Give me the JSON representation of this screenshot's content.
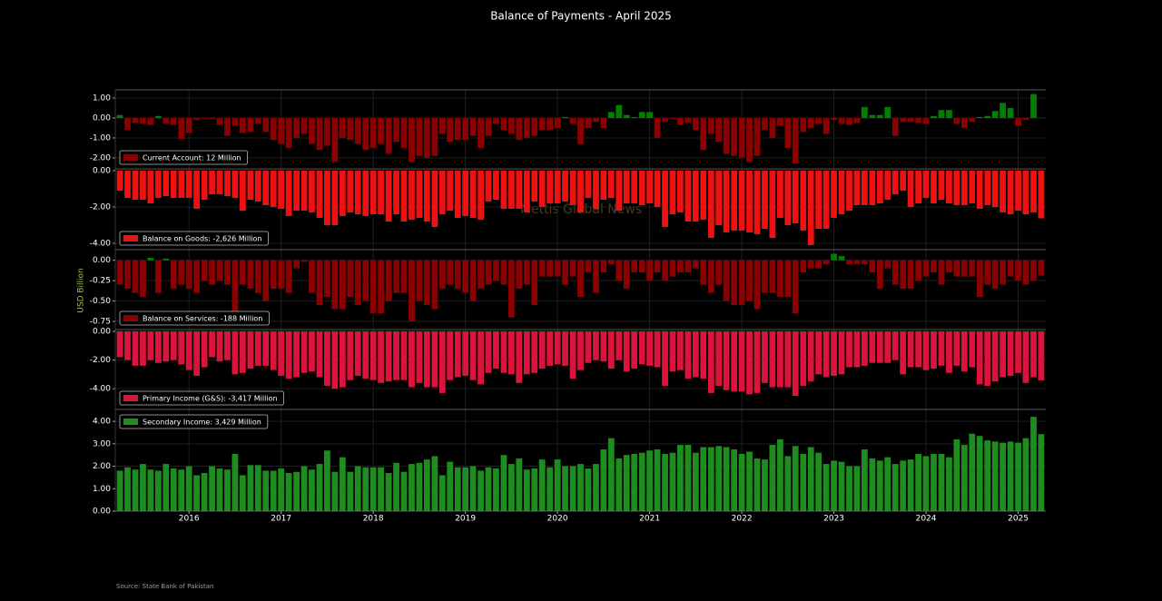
{
  "chart_data": {
    "type": "bar",
    "title": "Balance of Payments - April 2025",
    "y_label": "USD Billion",
    "watermark": "Mettis Global News",
    "source": "Source: State Bank of Pakistan",
    "grid": true,
    "xlim": [
      2015.2,
      2025.3
    ],
    "xticks": [
      2016,
      2017,
      2018,
      2019,
      2020,
      2021,
      2022,
      2023,
      2024,
      2025
    ],
    "x": [
      2015.25,
      2015.333,
      2015.417,
      2015.5,
      2015.583,
      2015.667,
      2015.75,
      2015.833,
      2015.917,
      2016,
      2016.083,
      2016.167,
      2016.25,
      2016.333,
      2016.417,
      2016.5,
      2016.583,
      2016.667,
      2016.75,
      2016.833,
      2016.917,
      2017,
      2017.083,
      2017.167,
      2017.25,
      2017.333,
      2017.417,
      2017.5,
      2017.583,
      2017.667,
      2017.75,
      2017.833,
      2017.917,
      2018,
      2018.083,
      2018.167,
      2018.25,
      2018.333,
      2018.417,
      2018.5,
      2018.583,
      2018.667,
      2018.75,
      2018.833,
      2018.917,
      2019,
      2019.083,
      2019.167,
      2019.25,
      2019.333,
      2019.417,
      2019.5,
      2019.583,
      2019.667,
      2019.75,
      2019.833,
      2019.917,
      2020,
      2020.083,
      2020.167,
      2020.25,
      2020.333,
      2020.417,
      2020.5,
      2020.583,
      2020.667,
      2020.75,
      2020.833,
      2020.917,
      2021,
      2021.083,
      2021.167,
      2021.25,
      2021.333,
      2021.417,
      2021.5,
      2021.583,
      2021.667,
      2021.75,
      2021.833,
      2021.917,
      2022,
      2022.083,
      2022.167,
      2022.25,
      2022.333,
      2022.417,
      2022.5,
      2022.583,
      2022.667,
      2022.75,
      2022.833,
      2022.917,
      2023,
      2023.083,
      2023.167,
      2023.25,
      2023.333,
      2023.417,
      2023.5,
      2023.583,
      2023.667,
      2023.75,
      2023.833,
      2023.917,
      2024,
      2024.083,
      2024.167,
      2024.25,
      2024.333,
      2024.417,
      2024.5,
      2024.583,
      2024.667,
      2024.75,
      2024.833,
      2024.917,
      2025,
      2025.083,
      2025.167,
      2025.25
    ],
    "series": [
      {
        "name": "Current Account: 12 Million",
        "color": "#8b0000",
        "positive_color": "#008000",
        "legend": "lower left",
        "ylim": [
          -2.55,
          1.41
        ],
        "yticks": [
          {
            "value": -2,
            "label": "-2.00"
          },
          {
            "value": -1,
            "label": "-1.00"
          },
          {
            "value": 0,
            "label": "0.00"
          },
          {
            "value": 1,
            "label": "1.00"
          }
        ],
        "values": [
          0.15,
          -0.6,
          -0.25,
          -0.3,
          -0.35,
          0.1,
          -0.3,
          -0.35,
          -1.05,
          -0.75,
          -0.1,
          -0.05,
          -0.05,
          -0.35,
          -0.9,
          -0.4,
          -0.75,
          -0.7,
          -0.3,
          -0.7,
          -1.1,
          -1.3,
          -1.5,
          -1.0,
          -0.8,
          -1.3,
          -1.6,
          -1.4,
          -2.2,
          -1.0,
          -1.1,
          -1.3,
          -1.6,
          -1.5,
          -1.3,
          -1.8,
          -1.2,
          -1.5,
          -2.2,
          -1.9,
          -2.0,
          -1.9,
          -0.8,
          -1.2,
          -1.1,
          -1.1,
          -0.9,
          -1.5,
          -0.9,
          -0.3,
          -0.6,
          -0.8,
          -1.1,
          -1.0,
          -0.9,
          -0.6,
          -0.6,
          -0.5,
          0.05,
          -0.3,
          -1.3,
          -0.5,
          -0.2,
          -0.5,
          0.3,
          0.65,
          0.15,
          0.05,
          0.3,
          0.3,
          -1.0,
          -0.2,
          -0.05,
          -0.35,
          -0.25,
          -0.6,
          -1.6,
          -0.8,
          -1.2,
          -1.8,
          -1.9,
          -2.0,
          -2.2,
          -1.9,
          -0.6,
          -1.0,
          -0.4,
          -1.5,
          -2.3,
          -0.7,
          -0.5,
          -0.3,
          -0.8,
          -0.1,
          -0.3,
          -0.35,
          -0.25,
          0.55,
          0.15,
          0.15,
          0.55,
          -0.9,
          -0.2,
          -0.2,
          -0.25,
          -0.3,
          0.1,
          0.4,
          0.4,
          -0.3,
          -0.5,
          -0.2,
          0.05,
          0.1,
          0.35,
          0.75,
          0.5,
          -0.4,
          -0.1,
          1.2,
          0.012
        ]
      },
      {
        "name": "Balance on Goods: -2,626 Million",
        "color": "#ee1111",
        "legend": "lower left",
        "ylim": [
          -4.35,
          0.1
        ],
        "yticks": [
          {
            "value": -4,
            "label": "-4.00"
          },
          {
            "value": -2,
            "label": "-2.00"
          },
          {
            "value": 0,
            "label": "0.00"
          }
        ],
        "values": [
          -1.1,
          -1.5,
          -1.6,
          -1.6,
          -1.8,
          -1.5,
          -1.4,
          -1.5,
          -1.5,
          -1.5,
          -2.1,
          -1.6,
          -1.3,
          -1.3,
          -1.4,
          -1.5,
          -2.2,
          -1.6,
          -1.7,
          -1.9,
          -2.0,
          -2.1,
          -2.5,
          -2.2,
          -2.2,
          -2.3,
          -2.6,
          -3.0,
          -3.0,
          -2.5,
          -2.3,
          -2.4,
          -2.5,
          -2.4,
          -2.4,
          -2.8,
          -2.4,
          -2.8,
          -2.7,
          -2.6,
          -2.8,
          -3.1,
          -2.4,
          -2.2,
          -2.6,
          -2.5,
          -2.6,
          -2.7,
          -1.7,
          -1.6,
          -2.1,
          -2.1,
          -2.1,
          -2.3,
          -1.7,
          -2.0,
          -1.8,
          -1.8,
          -1.7,
          -1.9,
          -2.3,
          -1.5,
          -2.1,
          -1.6,
          -1.5,
          -2.2,
          -1.8,
          -1.8,
          -1.9,
          -1.8,
          -2.0,
          -3.1,
          -2.4,
          -2.3,
          -2.8,
          -2.8,
          -2.7,
          -3.7,
          -3.0,
          -3.4,
          -3.3,
          -3.3,
          -3.4,
          -3.5,
          -3.2,
          -3.7,
          -2.6,
          -3.0,
          -2.9,
          -3.3,
          -4.1,
          -3.2,
          -3.2,
          -2.6,
          -2.4,
          -2.2,
          -1.9,
          -1.9,
          -1.9,
          -1.8,
          -1.6,
          -1.3,
          -1.1,
          -2.0,
          -1.8,
          -1.5,
          -1.8,
          -1.6,
          -1.8,
          -1.9,
          -1.9,
          -1.8,
          -2.1,
          -1.9,
          -2.0,
          -2.3,
          -2.4,
          -2.2,
          -2.4,
          -2.3,
          -2.626
        ]
      },
      {
        "name": "Balance on Services: -188 Million",
        "color": "#8b0000",
        "positive_color": "#008000",
        "legend": "lower left",
        "ylim": [
          -0.85,
          0.13
        ],
        "yticks": [
          -0.75,
          {
            "value": -0.5,
            "label": "-0.50"
          },
          -0.25,
          {
            "value": 0,
            "label": "0.00"
          }
        ],
        "values": [
          -0.3,
          -0.35,
          -0.4,
          -0.45,
          0.03,
          -0.4,
          0.02,
          -0.35,
          -0.3,
          -0.35,
          -0.4,
          -0.25,
          -0.3,
          -0.25,
          -0.3,
          -0.65,
          -0.3,
          -0.35,
          -0.4,
          -0.5,
          -0.35,
          -0.35,
          -0.4,
          -0.1,
          -0.02,
          -0.4,
          -0.55,
          -0.45,
          -0.6,
          -0.6,
          -0.45,
          -0.55,
          -0.5,
          -0.65,
          -0.65,
          -0.5,
          -0.4,
          -0.4,
          -0.75,
          -0.5,
          -0.55,
          -0.6,
          -0.35,
          -0.3,
          -0.35,
          -0.4,
          -0.5,
          -0.35,
          -0.3,
          -0.25,
          -0.3,
          -0.7,
          -0.35,
          -0.3,
          -0.55,
          -0.2,
          -0.2,
          -0.2,
          -0.3,
          -0.2,
          -0.45,
          -0.15,
          -0.4,
          -0.15,
          -0.05,
          -0.25,
          -0.35,
          -0.15,
          -0.15,
          -0.25,
          -0.15,
          -0.25,
          -0.2,
          -0.15,
          -0.15,
          -0.1,
          -0.3,
          -0.4,
          -0.3,
          -0.5,
          -0.55,
          -0.55,
          -0.5,
          -0.6,
          -0.4,
          -0.4,
          -0.45,
          -0.45,
          -0.65,
          -0.15,
          -0.1,
          -0.1,
          -0.05,
          0.08,
          0.05,
          -0.05,
          -0.05,
          -0.05,
          -0.15,
          -0.35,
          -0.1,
          -0.3,
          -0.35,
          -0.35,
          -0.25,
          -0.2,
          -0.15,
          -0.3,
          -0.15,
          -0.2,
          -0.2,
          -0.2,
          -0.45,
          -0.3,
          -0.35,
          -0.3,
          -0.2,
          -0.25,
          -0.3,
          -0.25,
          -0.188
        ]
      },
      {
        "name": "Primary Income (G&S): -3,417 Million",
        "color": "#dc143c",
        "legend": "lower left",
        "ylim": [
          -5.45,
          0.13
        ],
        "yticks": [
          {
            "value": -4,
            "label": "-4.00"
          },
          {
            "value": -2,
            "label": "-2.00"
          },
          {
            "value": 0,
            "label": "0.00"
          }
        ],
        "values": [
          -1.8,
          -2.0,
          -2.4,
          -2.4,
          -2.0,
          -2.2,
          -2.1,
          -2.0,
          -2.3,
          -2.7,
          -3.1,
          -2.5,
          -1.8,
          -2.1,
          -2.0,
          -3.0,
          -2.9,
          -2.6,
          -2.4,
          -2.4,
          -2.7,
          -3.1,
          -3.3,
          -3.2,
          -2.9,
          -2.8,
          -3.2,
          -3.8,
          -4.0,
          -3.9,
          -3.4,
          -3.1,
          -3.3,
          -3.4,
          -3.6,
          -3.5,
          -3.4,
          -3.4,
          -3.9,
          -3.6,
          -3.9,
          -3.9,
          -4.3,
          -3.4,
          -3.2,
          -3.1,
          -3.4,
          -3.7,
          -2.9,
          -2.6,
          -2.9,
          -3.0,
          -3.6,
          -3.0,
          -2.9,
          -2.6,
          -2.4,
          -2.3,
          -2.4,
          -3.3,
          -2.7,
          -2.2,
          -2.0,
          -2.1,
          -2.6,
          -2.0,
          -2.8,
          -2.6,
          -2.3,
          -2.4,
          -2.5,
          -3.8,
          -2.8,
          -2.7,
          -3.3,
          -3.2,
          -3.3,
          -4.3,
          -3.8,
          -4.1,
          -4.2,
          -4.2,
          -4.4,
          -4.3,
          -3.6,
          -3.9,
          -3.9,
          -3.9,
          -4.5,
          -3.8,
          -3.5,
          -3.0,
          -3.2,
          -3.1,
          -3.0,
          -2.5,
          -2.5,
          -2.4,
          -2.2,
          -2.2,
          -2.2,
          -2.0,
          -3.0,
          -2.5,
          -2.5,
          -2.7,
          -2.6,
          -2.4,
          -2.9,
          -2.4,
          -2.8,
          -2.5,
          -3.7,
          -3.8,
          -3.5,
          -3.2,
          -3.1,
          -2.9,
          -3.6,
          -3.2,
          -3.417
        ]
      },
      {
        "name": "Secondary Income: 3,429 Million",
        "color": "#1e8c1e",
        "legend": "upper left",
        "ylim": [
          0,
          4.53
        ],
        "yticks": [
          {
            "value": 0,
            "label": "0.00"
          },
          {
            "value": 1,
            "label": "1.00"
          },
          {
            "value": 2,
            "label": "2.00"
          },
          {
            "value": 3,
            "label": "3.00"
          },
          {
            "value": 4,
            "label": "4.00"
          }
        ],
        "values": [
          1.8,
          1.95,
          1.85,
          2.1,
          1.85,
          1.8,
          2.1,
          1.9,
          1.85,
          2.0,
          1.6,
          1.7,
          2.0,
          1.9,
          1.85,
          2.55,
          1.6,
          2.05,
          2.05,
          1.8,
          1.8,
          1.9,
          1.7,
          1.75,
          2.0,
          1.85,
          2.1,
          2.7,
          1.75,
          2.4,
          1.75,
          2.0,
          1.95,
          1.95,
          1.95,
          1.7,
          2.15,
          1.75,
          2.1,
          2.15,
          2.3,
          2.45,
          1.6,
          2.2,
          1.95,
          1.95,
          2.0,
          1.8,
          1.95,
          1.9,
          2.5,
          2.1,
          2.35,
          1.85,
          1.9,
          2.3,
          1.95,
          2.3,
          2.0,
          2.0,
          2.1,
          1.9,
          2.1,
          2.75,
          3.25,
          2.35,
          2.5,
          2.55,
          2.6,
          2.7,
          2.75,
          2.55,
          2.6,
          2.95,
          2.95,
          2.6,
          2.85,
          2.85,
          2.9,
          2.85,
          2.75,
          2.55,
          2.65,
          2.35,
          2.3,
          2.95,
          3.2,
          2.45,
          2.9,
          2.55,
          2.85,
          2.6,
          2.1,
          2.25,
          2.2,
          2.0,
          2.0,
          2.75,
          2.35,
          2.25,
          2.4,
          2.1,
          2.25,
          2.3,
          2.55,
          2.45,
          2.55,
          2.55,
          2.4,
          3.2,
          2.95,
          3.45,
          3.35,
          3.15,
          3.1,
          3.05,
          3.1,
          3.05,
          3.25,
          4.2,
          3.429
        ]
      }
    ]
  }
}
